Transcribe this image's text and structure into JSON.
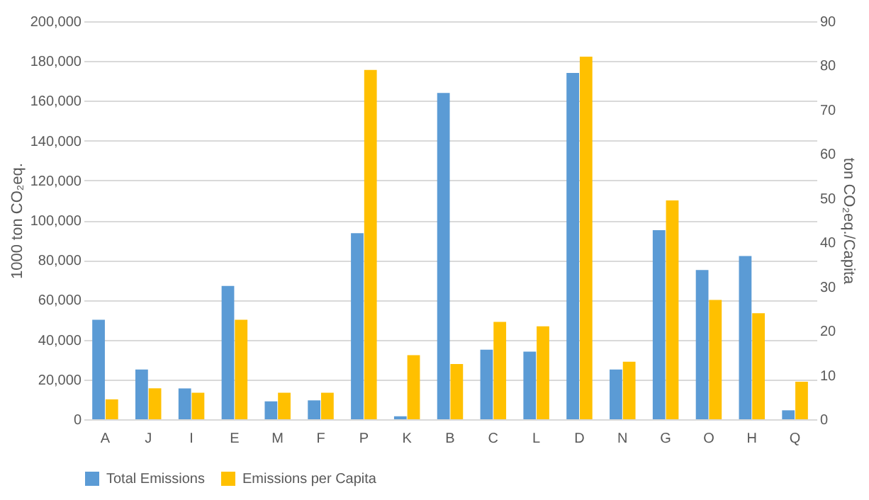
{
  "chart_data": {
    "type": "bar",
    "categories": [
      "A",
      "J",
      "I",
      "E",
      "M",
      "F",
      "P",
      "K",
      "B",
      "C",
      "L",
      "D",
      "N",
      "G",
      "O",
      "H",
      "Q"
    ],
    "ylabel": "1000 ton CO₂eq.",
    "y2label": "ton CO₂eq./Capita",
    "series": [
      {
        "name": "Total Emissions",
        "color": "#5b9bd5",
        "values": [
          50000,
          25000,
          15500,
          67000,
          9000,
          9500,
          93500,
          1500,
          164000,
          35000,
          34000,
          174000,
          25000,
          95000,
          75000,
          82000,
          4500
        ]
      },
      {
        "name": "Emissions per Capita",
        "color": "#ffc000",
        "axis": "y2",
        "values": [
          4.5,
          7,
          6,
          22.5,
          6,
          6,
          79,
          14.5,
          12.5,
          22,
          21,
          82,
          13,
          49.5,
          27,
          24,
          8.5
        ]
      }
    ],
    "ylim": [
      0,
      200000
    ],
    "yticks": [
      0,
      {
        "value": 20000,
        "label": "20,000"
      },
      {
        "value": 40000,
        "label": "40,000"
      },
      {
        "value": 60000,
        "label": "60,000"
      },
      {
        "value": 80000,
        "label": "80,000"
      },
      {
        "value": 100000,
        "label": "100,000"
      },
      {
        "value": 120000,
        "label": "120,000"
      },
      {
        "value": 140000,
        "label": "140,000"
      },
      {
        "value": 160000,
        "label": "160,000"
      },
      {
        "value": 180000,
        "label": "180,000"
      },
      {
        "value": 200000,
        "label": "200,000"
      }
    ],
    "y2lim": [
      0,
      90
    ],
    "y2ticks": [
      0,
      10,
      20,
      30,
      40,
      50,
      60,
      70,
      80,
      90
    ],
    "grid": "y",
    "legend": "bottom"
  }
}
